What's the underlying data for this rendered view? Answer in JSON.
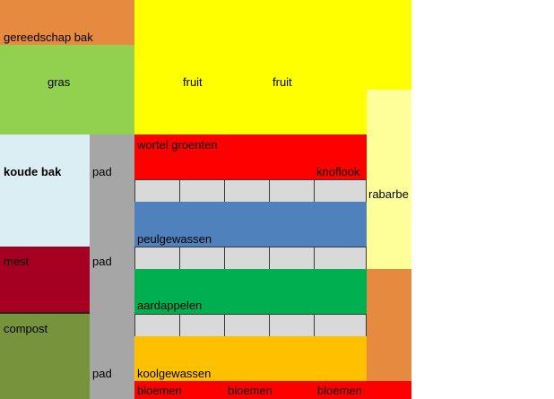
{
  "colors": {
    "orange": "#e58a3f",
    "light_green": "#92d050",
    "yellow": "#ffff00",
    "pale_yellow": "#ffff99",
    "light_blue": "#daeef3",
    "grey_path": "#a6a6a6",
    "red": "#ff0000",
    "path_grey": "#d9d9d9",
    "blue": "#4f81bd",
    "green": "#00b050",
    "dark_red": "#a50021",
    "olive": "#77933c",
    "gold": "#ffc000"
  },
  "labels": {
    "gereedschap_bak": "gereedschap bak",
    "gras": "gras",
    "fruit_1": "fruit",
    "fruit_2": "fruit",
    "koude_bak": "koude bak",
    "pad_1": "pad",
    "pad_2": "pad",
    "pad_3": "pad",
    "wortel_groenten": "wortel groenten",
    "knoflook": "knoflook",
    "rabarbe": "rabarbe",
    "peulgewassen": "peulgewassen",
    "mest": "mest",
    "aardappelen": "aardappelen",
    "compost": "compost",
    "koolgewassen": "koolgewassen",
    "bloemen_1": "bloemen",
    "bloemen_2": "bloemen",
    "bloemen_3": "bloemen"
  }
}
